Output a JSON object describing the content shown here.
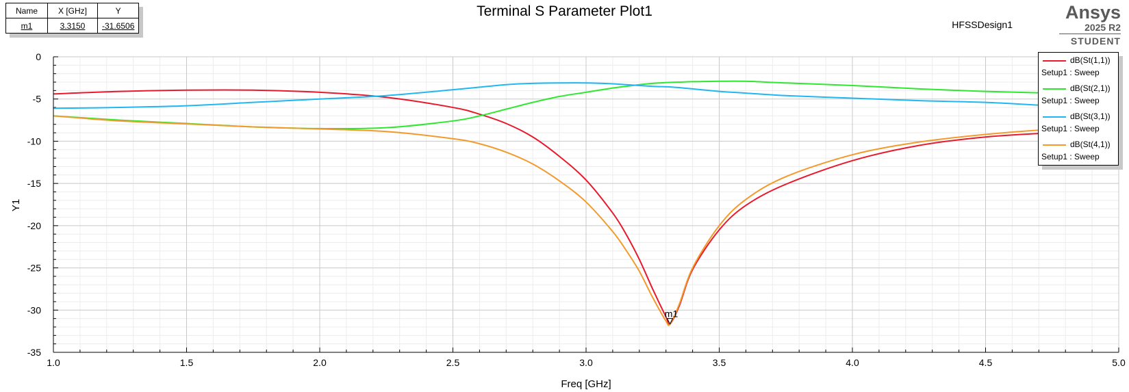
{
  "marker_table": {
    "headers": [
      "Name",
      "X [GHz]",
      "Y"
    ],
    "rows": [
      [
        "m1",
        "3.3150",
        "-31.6506"
      ]
    ]
  },
  "title": "Terminal S Parameter Plot1",
  "design_name": "HFSSDesign1",
  "brand": {
    "name": "Ansys",
    "version": "2025 R2",
    "edition": "STUDENT"
  },
  "marker_label": "m1",
  "chart_data": {
    "type": "line",
    "title": "Terminal S Parameter Plot1",
    "xlabel": "Freq [GHz]",
    "ylabel": "Y1",
    "xlim": [
      1.0,
      5.0
    ],
    "ylim": [
      -35,
      0
    ],
    "x_ticks": [
      "1.0",
      "1.5",
      "2.0",
      "2.5",
      "3.0",
      "3.5",
      "4.0",
      "4.5",
      "5.0"
    ],
    "y_ticks": [
      "0",
      "-5",
      "-10",
      "-15",
      "-20",
      "-25",
      "-30",
      "-35"
    ],
    "grid": true,
    "legend_position": "top-right",
    "x": [
      1.0,
      1.25,
      1.5,
      1.75,
      2.0,
      2.25,
      2.5,
      2.6,
      2.7,
      2.8,
      2.9,
      3.0,
      3.1,
      3.15,
      3.2,
      3.25,
      3.3,
      3.315,
      3.35,
      3.4,
      3.5,
      3.6,
      3.75,
      4.0,
      4.25,
      4.5,
      4.75,
      5.0
    ],
    "series": [
      {
        "name": "dB(St(1,1))",
        "sub": "Setup1 : Sweep",
        "color": "#e8192c",
        "values": [
          -4.4,
          -4.1,
          -3.95,
          -3.95,
          -4.2,
          -4.8,
          -6.0,
          -6.8,
          -7.9,
          -9.5,
          -11.8,
          -14.6,
          -18.5,
          -21.0,
          -24.0,
          -27.5,
          -30.8,
          -31.65,
          -29.5,
          -25.2,
          -20.5,
          -17.6,
          -15.1,
          -12.3,
          -10.5,
          -9.5,
          -9.0,
          -8.6
        ]
      },
      {
        "name": "dB(St(2,1))",
        "sub": "Setup1 : Sweep",
        "color": "#2ee82e",
        "values": [
          -7.0,
          -7.5,
          -7.9,
          -8.3,
          -8.5,
          -8.4,
          -7.6,
          -7.0,
          -6.2,
          -5.4,
          -4.7,
          -4.2,
          -3.7,
          -3.5,
          -3.3,
          -3.15,
          -3.05,
          -3.03,
          -3.0,
          -2.95,
          -2.9,
          -2.9,
          -3.1,
          -3.4,
          -3.8,
          -4.1,
          -4.3,
          -4.4
        ]
      },
      {
        "name": "dB(St(3,1))",
        "sub": "Setup1 : Sweep",
        "color": "#1fb7f0",
        "values": [
          -6.1,
          -6.0,
          -5.8,
          -5.4,
          -5.0,
          -4.6,
          -3.9,
          -3.6,
          -3.3,
          -3.15,
          -3.1,
          -3.1,
          -3.2,
          -3.3,
          -3.4,
          -3.5,
          -3.55,
          -3.57,
          -3.65,
          -3.8,
          -4.1,
          -4.3,
          -4.6,
          -4.9,
          -5.2,
          -5.4,
          -5.8,
          -6.1
        ]
      },
      {
        "name": "dB(St(4,1))",
        "sub": "Setup1 : Sweep",
        "color": "#f39a2b",
        "values": [
          -7.0,
          -7.6,
          -7.95,
          -8.3,
          -8.55,
          -8.85,
          -9.7,
          -10.3,
          -11.3,
          -12.7,
          -14.7,
          -17.2,
          -20.7,
          -22.9,
          -25.4,
          -28.5,
          -31.3,
          -31.65,
          -29.3,
          -25.0,
          -20.0,
          -16.9,
          -14.2,
          -11.6,
          -10.1,
          -9.2,
          -8.6,
          -8.4
        ]
      }
    ],
    "marker": {
      "name": "m1",
      "x": 3.315,
      "y": -31.6506
    }
  }
}
